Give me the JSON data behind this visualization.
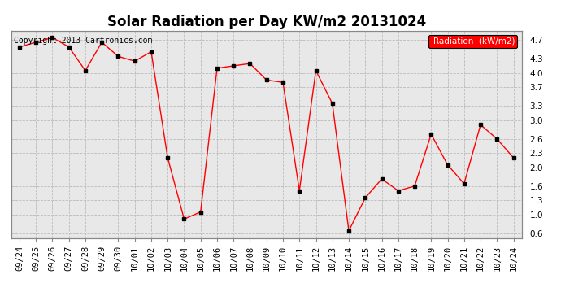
{
  "title": "Solar Radiation per Day KW/m2 20131024",
  "labels": [
    "09/24",
    "09/25",
    "09/26",
    "09/27",
    "09/28",
    "09/29",
    "09/30",
    "10/01",
    "10/02",
    "10/03",
    "10/04",
    "10/05",
    "10/06",
    "10/07",
    "10/08",
    "10/09",
    "10/10",
    "10/11",
    "10/12",
    "10/13",
    "10/14",
    "10/15",
    "10/16",
    "10/17",
    "10/18",
    "10/19",
    "10/20",
    "10/21",
    "10/22",
    "10/23",
    "10/24"
  ],
  "values": [
    4.55,
    4.65,
    4.75,
    4.55,
    4.05,
    4.65,
    4.35,
    4.25,
    4.45,
    2.2,
    0.9,
    1.05,
    4.1,
    4.15,
    4.2,
    3.85,
    3.8,
    1.5,
    4.05,
    3.35,
    0.65,
    1.35,
    1.75,
    1.5,
    1.6,
    2.7,
    2.05,
    1.65,
    2.9,
    2.6,
    2.2
  ],
  "line_color": "red",
  "marker_color": "black",
  "marker_size": 3.0,
  "legend_label": "Radiation  (kW/m2)",
  "legend_bg": "red",
  "legend_text_color": "white",
  "copyright_text": "Copyright 2013 Cartronics.com",
  "ylim": [
    0.5,
    4.9
  ],
  "yticks": [
    0.6,
    1.0,
    1.3,
    1.6,
    2.0,
    2.3,
    2.6,
    3.0,
    3.3,
    3.7,
    4.0,
    4.3,
    4.7
  ],
  "ytick_labels": [
    "0.6",
    "1.0",
    "1.3",
    "1.6",
    "2.0",
    "2.3",
    "2.6",
    "3.0",
    "3.3",
    "3.7",
    "4.0",
    "4.3",
    "4.7"
  ],
  "grid_color": "#bbbbbb",
  "bg_color": "#ffffff",
  "plot_bg_color": "#e8e8e8",
  "title_fontsize": 12,
  "tick_fontsize": 7.5,
  "copyright_fontsize": 7
}
